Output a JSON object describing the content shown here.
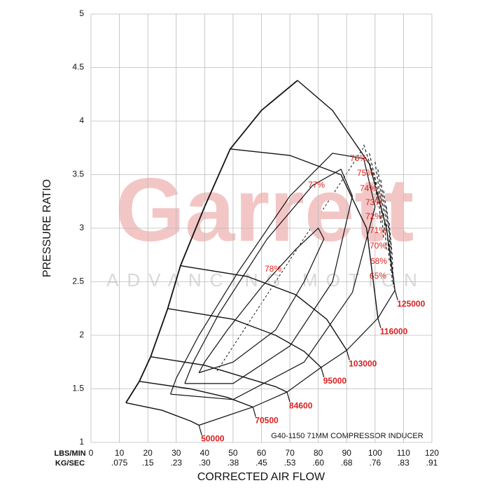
{
  "chart_data": {
    "type": "compressor-map",
    "watermark": "Garrett",
    "watermark_sub": "ADVANCING MOTION",
    "caption": "G40-1150 71MM COMPRESSOR INDUCER",
    "xlabel": "CORRECTED AIR FLOW",
    "ylabel": "PRESSURE RATIO",
    "xunit_primary": "LBS/MIN",
    "xunit_secondary": "KG/SEC",
    "xlim": [
      0,
      120
    ],
    "ylim": [
      1,
      5
    ],
    "xticks": [
      0,
      10,
      20,
      30,
      40,
      50,
      60,
      70,
      80,
      90,
      100,
      110,
      120
    ],
    "xticks_secondary": [
      ".075",
      ".15",
      ".23",
      ".30",
      ".38",
      ".45",
      ".53",
      ".60",
      ".68",
      ".76",
      ".83",
      ".91"
    ],
    "yticks": [
      1,
      1.5,
      2,
      2.5,
      3,
      3.5,
      4,
      4.5,
      5
    ],
    "grid": true,
    "line_color": "#111111",
    "label_color": "#e0201c",
    "surge_line": {
      "x": [
        12.3,
        17,
        21,
        27,
        31.5,
        40,
        49,
        60,
        72.7
      ],
      "y": [
        1.37,
        1.57,
        1.8,
        2.25,
        2.65,
        3.2,
        3.74,
        4.1,
        4.38
      ]
    },
    "choke_line": {
      "x": [
        38,
        57,
        69,
        81,
        90,
        101,
        107
      ],
      "y": [
        1.16,
        1.33,
        1.47,
        1.7,
        1.86,
        2.16,
        2.42
      ]
    },
    "speed_lines": [
      {
        "name": "50000",
        "x": [
          12.3,
          25,
          35,
          38
        ],
        "y": [
          1.37,
          1.3,
          1.2,
          1.16
        ]
      },
      {
        "name": "70500",
        "x": [
          17,
          35,
          48,
          57
        ],
        "y": [
          1.57,
          1.5,
          1.42,
          1.33
        ]
      },
      {
        "name": "84600",
        "x": [
          21,
          40,
          55,
          65,
          69
        ],
        "y": [
          1.8,
          1.72,
          1.6,
          1.52,
          1.47
        ]
      },
      {
        "name": "95000",
        "x": [
          27,
          50,
          65,
          75,
          81
        ],
        "y": [
          2.25,
          2.15,
          2.0,
          1.85,
          1.7
        ]
      },
      {
        "name": "103000",
        "x": [
          31.5,
          55,
          72,
          83,
          90
        ],
        "y": [
          2.65,
          2.55,
          2.38,
          2.15,
          1.86
        ]
      },
      {
        "name": "116000",
        "x": [
          49,
          70,
          88,
          97,
          101
        ],
        "y": [
          3.74,
          3.68,
          3.5,
          3.0,
          2.16
        ]
      },
      {
        "name": "125000",
        "x": [
          72.7,
          85,
          98,
          104,
          107
        ],
        "y": [
          4.38,
          4.1,
          3.6,
          3.0,
          2.42
        ]
      }
    ],
    "efficiency_islands": [
      {
        "name": "78%",
        "x": [
          38,
          50,
          65,
          75,
          82,
          80,
          72,
          60,
          48,
          40,
          38
        ],
        "y": [
          1.65,
          1.75,
          2.05,
          2.5,
          2.9,
          3.0,
          2.8,
          2.45,
          2.05,
          1.75,
          1.65
        ]
      },
      {
        "name": "77%",
        "x": [
          33,
          50,
          70,
          85,
          92,
          88,
          78,
          62,
          45,
          36,
          33
        ],
        "y": [
          1.55,
          1.55,
          1.9,
          2.5,
          3.3,
          3.55,
          3.4,
          2.9,
          2.2,
          1.75,
          1.55
        ]
      },
      {
        "name": "76%",
        "x": [
          28,
          50,
          75,
          92,
          100,
          96,
          85,
          70,
          52,
          38,
          30,
          28
        ],
        "y": [
          1.45,
          1.4,
          1.75,
          2.4,
          3.2,
          3.65,
          3.7,
          3.3,
          2.6,
          2.0,
          1.6,
          1.45
        ]
      },
      {
        "name": "75%",
        "x": [
          96,
          100,
          101
        ],
        "y": [
          3.78,
          3.45,
          3.2
        ]
      },
      {
        "name": "74%",
        "x": [
          98,
          101,
          102
        ],
        "y": [
          3.7,
          3.35,
          3.05
        ]
      },
      {
        "name": "73%",
        "x": [
          100,
          102,
          103
        ],
        "y": [
          3.62,
          3.25,
          2.9
        ]
      },
      {
        "name": "72%",
        "x": [
          101,
          103,
          104
        ],
        "y": [
          3.55,
          3.15,
          2.8
        ]
      },
      {
        "name": "71%",
        "x": [
          102,
          104,
          105
        ],
        "y": [
          3.45,
          3.05,
          2.7
        ]
      },
      {
        "name": "70%",
        "x": [
          103,
          105,
          105.5
        ],
        "y": [
          3.35,
          2.95,
          2.6
        ]
      },
      {
        "name": "68%",
        "x": [
          104,
          105.5,
          106
        ],
        "y": [
          3.2,
          2.85,
          2.5
        ]
      },
      {
        "name": "65%",
        "x": [
          105,
          106,
          106.5
        ],
        "y": [
          3.05,
          2.75,
          2.45
        ]
      }
    ]
  }
}
